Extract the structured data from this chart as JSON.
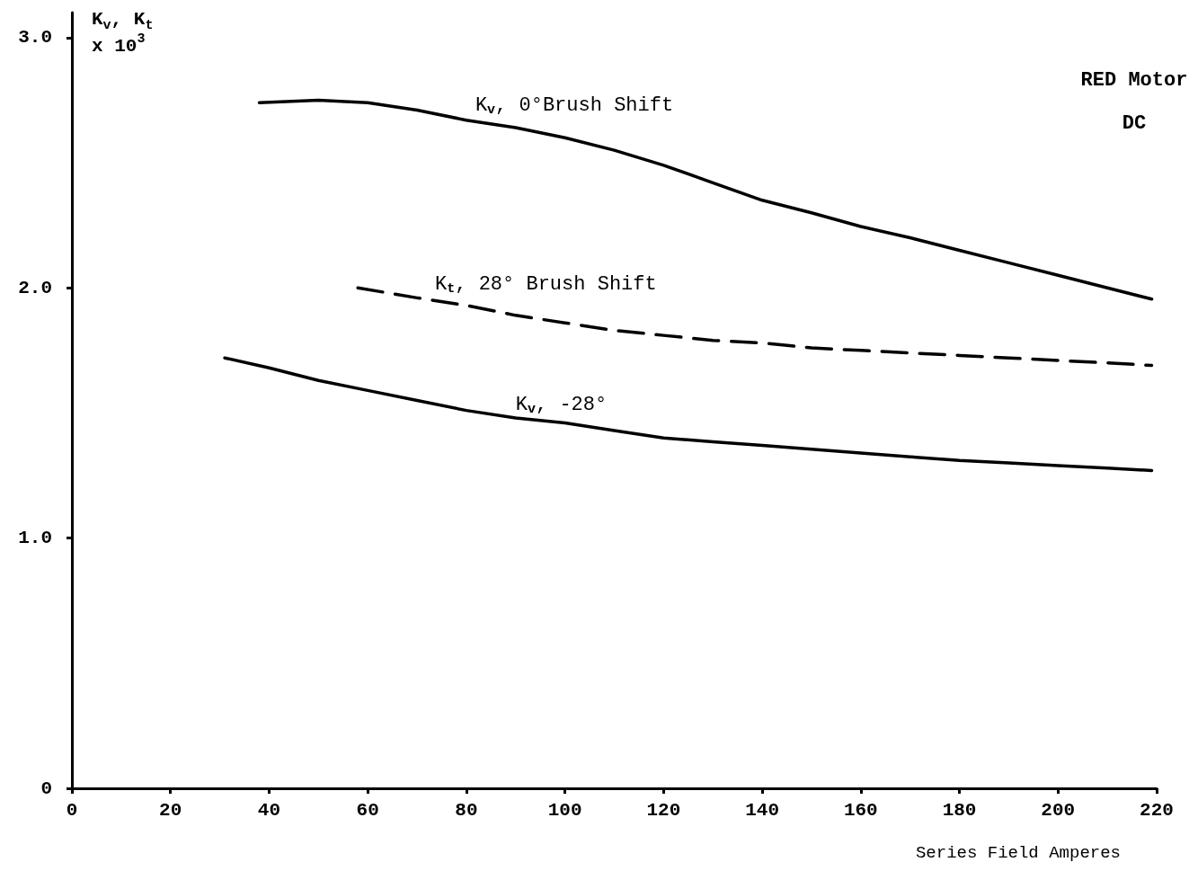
{
  "chart_data": {
    "type": "line",
    "ylabel": "K$_{v}$, K$_{t}$\nx 10$^{3}$",
    "xlabel": "Series Field Amperes",
    "xlim": [
      0,
      220
    ],
    "xticks": [
      0,
      20,
      40,
      60,
      80,
      100,
      120,
      140,
      160,
      180,
      200,
      220
    ],
    "ylim": [
      0,
      3.1
    ],
    "yticks": [
      {
        "value": 0,
        "label": "0"
      },
      {
        "value": 1,
        "label": "1.0"
      },
      {
        "value": 2,
        "label": "2.0"
      },
      {
        "value": 3,
        "label": "3.0"
      }
    ],
    "grid": false,
    "marker": "none",
    "series": [
      {
        "name": "K$_{v}$, 0°Brush Shift",
        "color": "#000000",
        "line_style": "solid",
        "x": [
          38,
          50,
          60,
          70,
          80,
          90,
          100,
          110,
          120,
          130,
          140,
          150,
          160,
          170,
          180,
          190,
          200,
          210,
          219
        ],
        "values": [
          2.74,
          2.75,
          2.74,
          2.71,
          2.67,
          2.64,
          2.6,
          2.55,
          2.49,
          2.42,
          2.35,
          2.3,
          2.245,
          2.2,
          2.15,
          2.1,
          2.05,
          2.0,
          1.955
        ]
      },
      {
        "name": "K$_{t}$, 28° Brush Shift",
        "color": "#000000",
        "line_style": "dashed",
        "x": [
          58,
          70,
          80,
          90,
          100,
          110,
          120,
          130,
          140,
          150,
          160,
          170,
          180,
          190,
          200,
          210,
          219
        ],
        "values": [
          2.0,
          1.96,
          1.93,
          1.89,
          1.86,
          1.83,
          1.81,
          1.79,
          1.78,
          1.76,
          1.75,
          1.74,
          1.73,
          1.72,
          1.71,
          1.7,
          1.69
        ]
      },
      {
        "name": "K$_{v}$, -28°",
        "color": "#000000",
        "line_style": "solid",
        "x": [
          31,
          40,
          50,
          60,
          70,
          80,
          90,
          100,
          110,
          120,
          130,
          140,
          150,
          160,
          170,
          180,
          190,
          200,
          210,
          219
        ],
        "values": [
          1.72,
          1.68,
          1.63,
          1.59,
          1.55,
          1.51,
          1.48,
          1.46,
          1.43,
          1.4,
          1.385,
          1.37,
          1.355,
          1.34,
          1.325,
          1.31,
          1.3,
          1.29,
          1.28,
          1.27
        ]
      }
    ],
    "legend": false,
    "annotations": [
      "RED Motor",
      "DC"
    ]
  }
}
